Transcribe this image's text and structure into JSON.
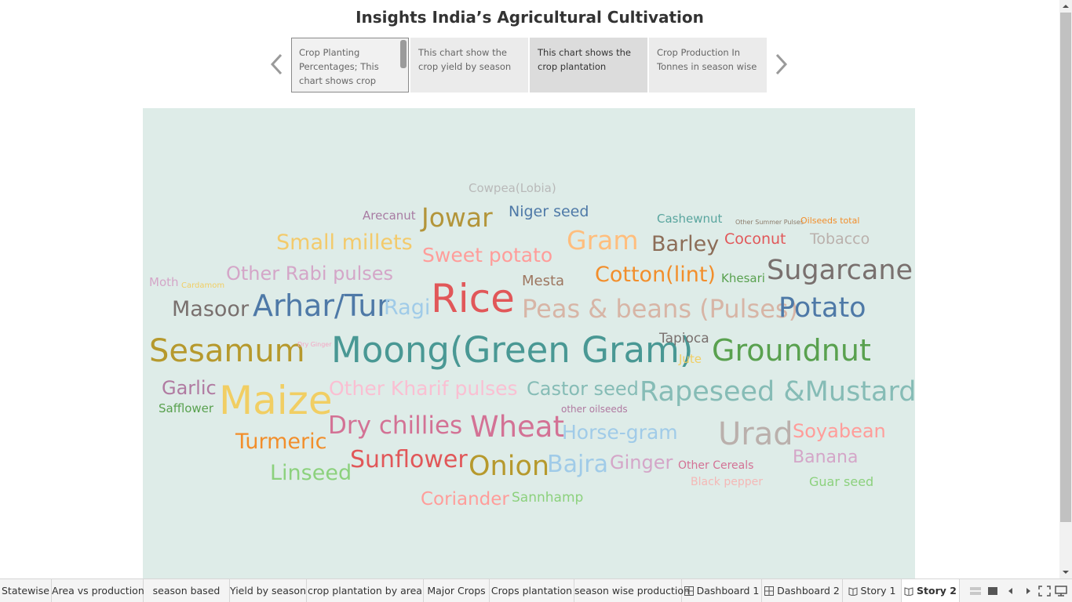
{
  "story": {
    "title": "Insights India’s Agricultural Cultivation",
    "points": [
      {
        "label": "Crop Planting Percentages; This chart shows crop"
      },
      {
        "label": "This chart show the crop yield by season"
      },
      {
        "label": "This chart shows the crop plantation"
      },
      {
        "label": "Crop Production In Tonnes in season wise"
      }
    ],
    "prev_icon": "chevron-left-icon",
    "next_icon": "chevron-right-icon"
  },
  "wordcloud": {
    "background": "#deece8",
    "words": [
      {
        "text": "Cowpea(Lobia)",
        "color": "#b9b9b9"
      },
      {
        "text": "Arecanut",
        "color": "#a87ca3"
      },
      {
        "text": "Jowar",
        "color": "#b3953a"
      },
      {
        "text": "Niger seed",
        "color": "#4e79a7"
      },
      {
        "text": "Cashewnut",
        "color": "#59a59e"
      },
      {
        "text": "Other Summer Pulses",
        "color": "#8c7b6b"
      },
      {
        "text": "Oilseeds total",
        "color": "#f28e2b"
      },
      {
        "text": "Small millets",
        "color": "#f3ca6b"
      },
      {
        "text": "Gram",
        "color": "#ffbe7d"
      },
      {
        "text": "Barley",
        "color": "#8c6d58"
      },
      {
        "text": "Coconut",
        "color": "#e15759"
      },
      {
        "text": "Tobacco",
        "color": "#bab0ac"
      },
      {
        "text": "Sweet potato",
        "color": "#ff9d9a"
      },
      {
        "text": "Moth",
        "color": "#d4a6c8"
      },
      {
        "text": "Cardamom",
        "color": "#f1ce63"
      },
      {
        "text": "Other Rabi pulses",
        "color": "#d4a6c8"
      },
      {
        "text": "Mesta",
        "color": "#9d7660"
      },
      {
        "text": "Cotton(lint)",
        "color": "#f28e2b"
      },
      {
        "text": "Khesari",
        "color": "#59a14f"
      },
      {
        "text": "Sugarcane",
        "color": "#79706e"
      },
      {
        "text": "Masoor",
        "color": "#79706e"
      },
      {
        "text": "Arhar/Tur",
        "color": "#4e79a7"
      },
      {
        "text": "Ragi",
        "color": "#a0cbe8"
      },
      {
        "text": "Rice",
        "color": "#e15759"
      },
      {
        "text": "Peas & beans (Pulses)",
        "color": "#d7b5a6"
      },
      {
        "text": "Potato",
        "color": "#4e79a7"
      },
      {
        "text": "Sesamum",
        "color": "#b6992d"
      },
      {
        "text": "Dry Ginger",
        "color": "#f4a6c3"
      },
      {
        "text": "Moong(Green Gram)",
        "color": "#499894"
      },
      {
        "text": "Tapioca",
        "color": "#79706e"
      },
      {
        "text": "Groundnut",
        "color": "#59a14f"
      },
      {
        "text": "Jute",
        "color": "#f1ce63"
      },
      {
        "text": "Garlic",
        "color": "#b07aa1"
      },
      {
        "text": "Maize",
        "color": "#f1ce63"
      },
      {
        "text": "Other Kharif pulses",
        "color": "#fabfd2"
      },
      {
        "text": "Castor seed",
        "color": "#86bcb6"
      },
      {
        "text": "Rapeseed &Mustard",
        "color": "#86bcb6"
      },
      {
        "text": "Safflower",
        "color": "#59a14f"
      },
      {
        "text": "other oilseeds",
        "color": "#b07aa1"
      },
      {
        "text": "Dry chillies",
        "color": "#d37295"
      },
      {
        "text": "Wheat",
        "color": "#d37295"
      },
      {
        "text": "Horse-gram",
        "color": "#a0cbe8"
      },
      {
        "text": "Urad",
        "color": "#bab0ac"
      },
      {
        "text": "Soyabean",
        "color": "#ff9d9a"
      },
      {
        "text": "Turmeric",
        "color": "#f28e2b"
      },
      {
        "text": "Sunflower",
        "color": "#e15759"
      },
      {
        "text": "Onion",
        "color": "#b6992d"
      },
      {
        "text": "Bajra",
        "color": "#a0cbe8"
      },
      {
        "text": "Ginger",
        "color": "#d4a6c8"
      },
      {
        "text": "Other Cereals",
        "color": "#d37295"
      },
      {
        "text": "Banana",
        "color": "#d4a6c8"
      },
      {
        "text": "Linseed",
        "color": "#8cd17d"
      },
      {
        "text": "Black pepper",
        "color": "#f4b8b6"
      },
      {
        "text": "Guar seed",
        "color": "#8cd17d"
      },
      {
        "text": "Coriander",
        "color": "#ff9d9a"
      },
      {
        "text": "Sannhamp",
        "color": "#8cd17d"
      }
    ]
  },
  "tabs": [
    {
      "label": "Statewise",
      "icon": ""
    },
    {
      "label": "Area vs production",
      "icon": ""
    },
    {
      "label": "season based",
      "icon": ""
    },
    {
      "label": "Yield by season",
      "icon": ""
    },
    {
      "label": "crop plantation by area",
      "icon": ""
    },
    {
      "label": "Major Crops",
      "icon": ""
    },
    {
      "label": "Crops plantation",
      "icon": ""
    },
    {
      "label": "season wise production",
      "icon": ""
    },
    {
      "label": "Dashboard 1",
      "icon": "dashboard-grid-icon"
    },
    {
      "label": "Dashboard 2",
      "icon": "dashboard-grid-icon"
    },
    {
      "label": "Story 1",
      "icon": "story-book-icon"
    },
    {
      "label": "Story 2",
      "icon": "story-book-icon",
      "active": true
    }
  ],
  "controls": [
    "sheet-sorter-icon",
    "filmstrip-icon",
    "previous-sheet-icon",
    "next-sheet-icon",
    "fit-window-icon",
    "presentation-mode-icon"
  ]
}
